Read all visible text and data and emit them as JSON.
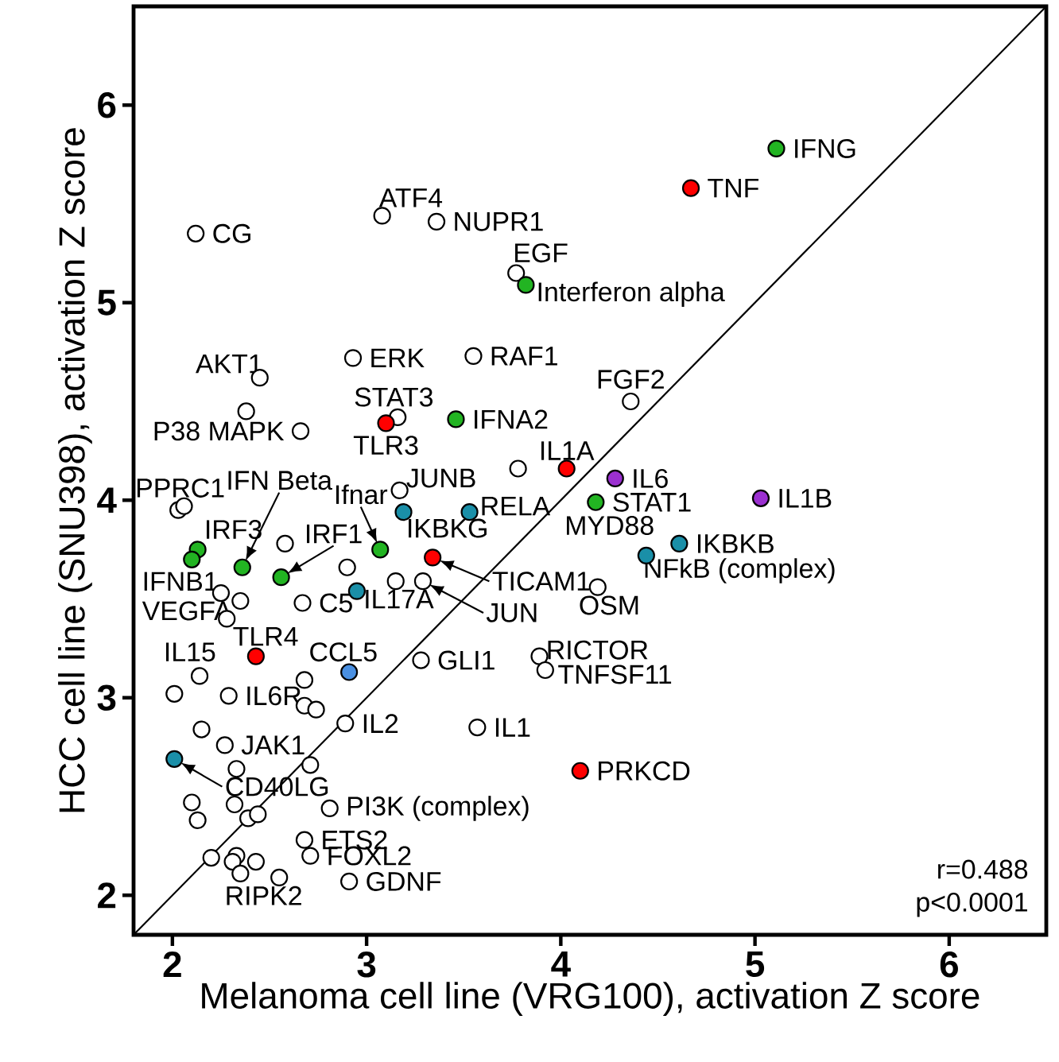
{
  "chart_data": {
    "type": "scatter",
    "xlabel": "Melanoma cell line (VRG100), activation Z score",
    "ylabel": "HCC cell line (SNU398), activation Z score",
    "xlim": [
      1.8,
      6.5
    ],
    "ylim": [
      1.8,
      6.5
    ],
    "xticks": [
      2,
      3,
      4,
      5,
      6
    ],
    "yticks": [
      2,
      3,
      4,
      5,
      6
    ],
    "marker": "circle",
    "series": [
      {
        "color": "#ffffff",
        "x": [
          2.12,
          3.08,
          3.36,
          3.77,
          2.93,
          3.55,
          2.45,
          2.38,
          2.66,
          3.16,
          3.78,
          3.17,
          2.03,
          2.06,
          4.36,
          2.58,
          2.9,
          3.15,
          3.29,
          2.25,
          2.35,
          2.28,
          2.67,
          3.28,
          2.14,
          2.01,
          2.29,
          2.68,
          2.68,
          2.74,
          2.15,
          2.27,
          2.89,
          3.57,
          2.33,
          2.71,
          2.1,
          2.13,
          2.32,
          2.39,
          2.44,
          2.81,
          2.68,
          2.71,
          2.2,
          2.33,
          2.31,
          2.43,
          2.35,
          2.55,
          2.91,
          4.19,
          3.89,
          3.92
        ],
        "values": [
          5.35,
          5.44,
          5.41,
          5.15,
          4.72,
          4.73,
          4.62,
          4.45,
          4.35,
          4.42,
          4.16,
          4.05,
          3.95,
          3.97,
          4.5,
          3.78,
          3.66,
          3.59,
          3.59,
          3.53,
          3.49,
          3.4,
          3.48,
          3.19,
          3.11,
          3.02,
          3.01,
          3.09,
          2.96,
          2.94,
          2.84,
          2.76,
          2.87,
          2.85,
          2.64,
          2.66,
          2.47,
          2.38,
          2.46,
          2.39,
          2.41,
          2.44,
          2.28,
          2.2,
          2.19,
          2.2,
          2.17,
          2.17,
          2.11,
          2.09,
          2.07,
          3.56,
          3.21,
          3.14
        ]
      },
      {
        "color": "#ff0000",
        "x": [
          4.67,
          3.1,
          4.03,
          3.34,
          2.43,
          4.1
        ],
        "values": [
          5.58,
          4.39,
          4.16,
          3.71,
          3.21,
          2.63
        ]
      },
      {
        "color": "#22b422",
        "x": [
          5.11,
          3.82,
          3.46,
          4.18,
          2.13,
          2.1,
          2.36,
          2.56,
          3.07
        ],
        "values": [
          5.78,
          5.09,
          4.41,
          3.99,
          3.75,
          3.7,
          3.66,
          3.61,
          3.75
        ]
      },
      {
        "color": "#1a8fa8",
        "x": [
          3.19,
          3.53,
          2.95,
          2.01,
          4.61,
          4.44
        ],
        "values": [
          3.94,
          3.94,
          3.54,
          2.69,
          3.78,
          3.72
        ]
      },
      {
        "color": "#4a90e2",
        "x": [
          2.91
        ],
        "values": [
          3.13
        ]
      },
      {
        "color": "#9b30d0",
        "x": [
          4.28,
          5.03
        ],
        "values": [
          4.11,
          4.01
        ]
      },
      {
        "type": "line",
        "color": "#000000",
        "marker": "none",
        "x": [
          1.8,
          6.5
        ],
        "values": [
          1.8,
          6.5
        ]
      }
    ],
    "annotations": [
      {
        "text": "IFNG",
        "x": 5.11,
        "y": 5.78
      },
      {
        "text": "TNF",
        "x": 4.67,
        "y": 5.58
      },
      {
        "text": "CG",
        "x": 2.12,
        "y": 5.35
      },
      {
        "text": "ATF4",
        "x": 3.08,
        "y": 5.44
      },
      {
        "text": "NUPR1",
        "x": 3.36,
        "y": 5.41
      },
      {
        "text": "EGF",
        "x": 3.77,
        "y": 5.15
      },
      {
        "text": "Interferon alpha",
        "x": 3.82,
        "y": 5.09
      },
      {
        "text": "ERK",
        "x": 2.93,
        "y": 4.72
      },
      {
        "text": "RAF1",
        "x": 3.55,
        "y": 4.73
      },
      {
        "text": "AKT1",
        "x": 2.45,
        "y": 4.62
      },
      {
        "text": "P38 MAPK",
        "x": 2.66,
        "y": 4.35
      },
      {
        "text": "STAT3",
        "x": 3.16,
        "y": 4.42
      },
      {
        "text": "TLR3",
        "x": 3.1,
        "y": 4.39
      },
      {
        "text": "IFNA2",
        "x": 3.46,
        "y": 4.41
      },
      {
        "text": "FGF2",
        "x": 4.36,
        "y": 4.5
      },
      {
        "text": "IL1A",
        "x": 4.03,
        "y": 4.16
      },
      {
        "text": "IL6",
        "x": 4.28,
        "y": 4.11
      },
      {
        "text": "STAT1",
        "x": 4.18,
        "y": 3.99
      },
      {
        "text": "IL1B",
        "x": 5.03,
        "y": 4.01
      },
      {
        "text": "JUNB",
        "x": 3.17,
        "y": 4.05
      },
      {
        "text": "RELA",
        "x": 3.53,
        "y": 3.94
      },
      {
        "text": "IKBKG",
        "x": 3.19,
        "y": 3.94
      },
      {
        "text": "PPRC1",
        "x": 2.06,
        "y": 3.97
      },
      {
        "text": "IFN Beta",
        "x": 2.36,
        "y": 3.66
      },
      {
        "text": "IRF3",
        "x": 2.13,
        "y": 3.75
      },
      {
        "text": "IFNB1",
        "x": 2.1,
        "y": 3.7
      },
      {
        "text": "IRF1",
        "x": 2.56,
        "y": 3.61
      },
      {
        "text": "Ifnar",
        "x": 3.07,
        "y": 3.75
      },
      {
        "text": "TICAM1",
        "x": 3.34,
        "y": 3.71
      },
      {
        "text": "JUN",
        "x": 3.29,
        "y": 3.59
      },
      {
        "text": "IL17A",
        "x": 2.95,
        "y": 3.54
      },
      {
        "text": "VEGFA",
        "x": 2.28,
        "y": 3.4
      },
      {
        "text": "C5",
        "x": 2.67,
        "y": 3.48
      },
      {
        "text": "TLR4",
        "x": 2.43,
        "y": 3.21
      },
      {
        "text": "CCL5",
        "x": 2.91,
        "y": 3.13
      },
      {
        "text": "GLI1",
        "x": 3.28,
        "y": 3.19
      },
      {
        "text": "IL15",
        "x": 2.14,
        "y": 3.11
      },
      {
        "text": "IL6R",
        "x": 2.29,
        "y": 3.01
      },
      {
        "text": "RICTOR",
        "x": 3.89,
        "y": 3.21
      },
      {
        "text": "TNFSF11",
        "x": 3.92,
        "y": 3.14
      },
      {
        "text": "OSM",
        "x": 4.19,
        "y": 3.56
      },
      {
        "text": "NFkB (complex)",
        "x": 4.44,
        "y": 3.72
      },
      {
        "text": "IKBKB",
        "x": 4.61,
        "y": 3.78
      },
      {
        "text": "JAK1",
        "x": 2.27,
        "y": 2.76
      },
      {
        "text": "IL2",
        "x": 2.89,
        "y": 2.87
      },
      {
        "text": "IL1",
        "x": 3.57,
        "y": 2.85
      },
      {
        "text": "CD40LG",
        "x": 2.01,
        "y": 2.69
      },
      {
        "text": "PI3K (complex)",
        "x": 2.81,
        "y": 2.44
      },
      {
        "text": "ETS2",
        "x": 2.68,
        "y": 2.28
      },
      {
        "text": "FOXL2",
        "x": 2.71,
        "y": 2.2
      },
      {
        "text": "RIPK2",
        "x": 2.55,
        "y": 2.09
      },
      {
        "text": "GDNF",
        "x": 2.91,
        "y": 2.07
      },
      {
        "text": "PRKCD",
        "x": 4.1,
        "y": 2.63
      },
      "MYD88",
      "r=0.488",
      "p<0.0001"
    ]
  }
}
